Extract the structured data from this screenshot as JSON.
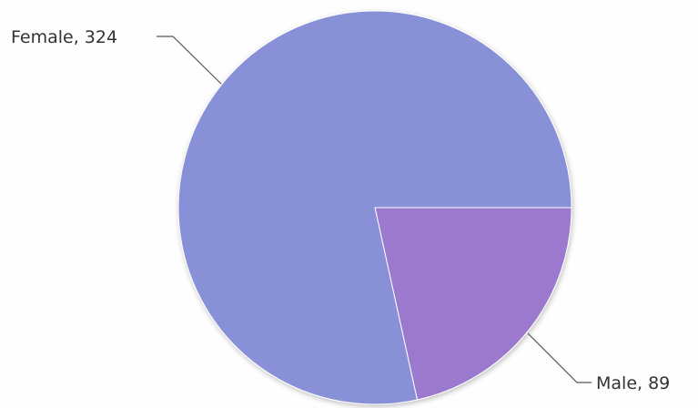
{
  "chart_data": {
    "type": "pie",
    "slices": [
      {
        "label": "Female",
        "value": 324,
        "color": "#8890d8",
        "text": "Female, 324"
      },
      {
        "label": "Male",
        "value": 89,
        "color": "#9b79cf",
        "text": "Male, 89"
      }
    ],
    "title": "",
    "legend": "none"
  }
}
